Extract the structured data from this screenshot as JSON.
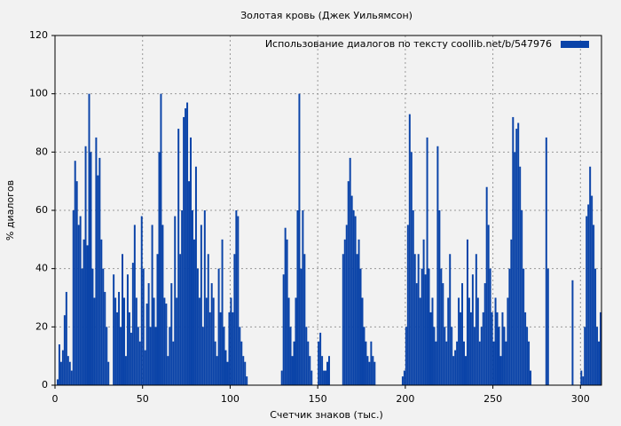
{
  "chart_data": {
    "type": "histogram",
    "title": "Золотая кровь (Джек Уильямсон)",
    "xlabel": "Счетчик знаков (тыс.)",
    "ylabel": "% диалогов",
    "series": [
      {
        "name": "Использование диалогов по тексту  coollib.net/b/547976",
        "color": "#0a43a8",
        "values": [
          0,
          2,
          14,
          8,
          12,
          24,
          32,
          10,
          8,
          5,
          60,
          77,
          70,
          55,
          58,
          40,
          50,
          82,
          48,
          100,
          80,
          40,
          30,
          85,
          72,
          78,
          50,
          40,
          32,
          20,
          8,
          0,
          0,
          38,
          30,
          25,
          32,
          20,
          45,
          30,
          10,
          38,
          25,
          18,
          42,
          55,
          30,
          20,
          15,
          58,
          40,
          12,
          28,
          35,
          20,
          55,
          30,
          20,
          45,
          80,
          100,
          55,
          30,
          28,
          10,
          20,
          35,
          15,
          58,
          30,
          88,
          45,
          60,
          92,
          95,
          97,
          70,
          85,
          60,
          50,
          75,
          40,
          30,
          55,
          20,
          60,
          30,
          45,
          25,
          35,
          30,
          15,
          10,
          40,
          25,
          50,
          20,
          12,
          8,
          25,
          30,
          25,
          45,
          60,
          58,
          20,
          15,
          10,
          8,
          3,
          0,
          0,
          0,
          0,
          0,
          0,
          0,
          0,
          0,
          0,
          0,
          0,
          0,
          0,
          0,
          0,
          0,
          0,
          0,
          5,
          38,
          54,
          50,
          30,
          20,
          10,
          15,
          30,
          60,
          100,
          40,
          60,
          45,
          20,
          15,
          10,
          5,
          0,
          0,
          0,
          15,
          18,
          10,
          5,
          5,
          8,
          10,
          0,
          0,
          0,
          0,
          0,
          0,
          0,
          45,
          50,
          55,
          70,
          78,
          65,
          60,
          58,
          45,
          50,
          40,
          30,
          20,
          15,
          10,
          8,
          15,
          10,
          8,
          0,
          0,
          0,
          0,
          0,
          0,
          0,
          0,
          0,
          0,
          0,
          0,
          0,
          0,
          0,
          3,
          5,
          20,
          55,
          93,
          80,
          60,
          45,
          35,
          45,
          30,
          40,
          50,
          38,
          85,
          40,
          25,
          30,
          20,
          15,
          82,
          60,
          40,
          35,
          20,
          15,
          30,
          45,
          20,
          10,
          12,
          15,
          30,
          25,
          35,
          15,
          10,
          50,
          30,
          25,
          38,
          20,
          45,
          30,
          15,
          20,
          25,
          35,
          68,
          55,
          40,
          25,
          15,
          30,
          25,
          20,
          10,
          25,
          20,
          15,
          30,
          40,
          50,
          92,
          80,
          88,
          90,
          75,
          60,
          40,
          25,
          20,
          15,
          5,
          0,
          0,
          0,
          0,
          0,
          0,
          0,
          0,
          85,
          40,
          0,
          0,
          0,
          0,
          0,
          0,
          0,
          0,
          0,
          0,
          0,
          0,
          0,
          36,
          0,
          0,
          0,
          0,
          5,
          3,
          20,
          58,
          62,
          75,
          65,
          55,
          40,
          20,
          15,
          25
        ]
      }
    ],
    "bins": [
      0,
      1,
      2,
      3,
      4,
      5,
      6,
      7,
      8,
      9,
      10,
      11,
      12,
      13,
      14,
      15,
      16,
      17,
      18,
      19,
      20,
      21,
      22,
      23,
      24,
      25,
      26,
      27,
      28,
      29,
      30,
      31,
      32,
      33,
      34,
      35,
      36,
      37,
      38,
      39,
      40,
      41,
      42,
      43,
      44,
      45,
      46,
      47,
      48,
      49,
      50,
      51,
      52,
      53,
      54,
      55,
      56,
      57,
      58,
      59,
      60,
      61,
      62,
      63,
      64,
      65,
      66,
      67,
      68,
      69,
      70,
      71,
      72,
      73,
      74,
      75,
      76,
      77,
      78,
      79,
      80,
      81,
      82,
      83,
      84,
      85,
      86,
      87,
      88,
      89,
      90,
      91,
      92,
      93,
      94,
      95,
      96,
      97,
      98,
      99,
      100,
      101,
      102,
      103,
      104,
      105,
      106,
      107,
      108,
      109,
      110,
      111,
      112,
      113,
      114,
      115,
      116,
      117,
      118,
      119,
      120,
      121,
      122,
      123,
      124,
      125,
      126,
      127,
      128,
      129,
      130,
      131,
      132,
      133,
      134,
      135,
      136,
      137,
      138,
      139,
      140,
      141,
      142,
      143,
      144,
      145,
      146,
      147,
      148,
      149,
      150,
      151,
      152,
      153,
      154,
      155,
      156,
      157,
      158,
      159,
      160,
      161,
      162,
      163,
      164,
      165,
      166,
      167,
      168,
      169,
      170,
      171,
      172,
      173,
      174,
      175,
      176,
      177,
      178,
      179,
      180,
      181,
      182,
      183,
      184,
      185,
      186,
      187,
      188,
      189,
      190,
      191,
      192,
      193,
      194,
      195,
      196,
      197,
      198,
      199,
      200,
      201,
      202,
      203,
      204,
      205,
      206,
      207,
      208,
      209,
      210,
      211,
      212,
      213,
      214,
      215,
      216,
      217,
      218,
      219,
      220,
      221,
      222,
      223,
      224,
      225,
      226,
      227,
      228,
      229,
      230,
      231,
      232,
      233,
      234,
      235,
      236,
      237,
      238,
      239,
      240,
      241,
      242,
      243,
      244,
      245,
      246,
      247,
      248,
      249,
      250,
      251,
      252,
      253,
      254,
      255,
      256,
      257,
      258,
      259,
      260,
      261,
      262,
      263,
      264,
      265,
      266,
      267,
      268,
      269,
      270,
      271,
      272,
      273,
      274,
      275,
      276,
      277,
      278,
      279,
      280,
      281,
      282,
      283,
      284,
      285,
      286,
      287,
      288,
      289,
      290,
      291,
      292,
      293,
      294,
      295,
      296,
      297,
      298,
      299,
      300,
      301,
      302,
      303,
      304,
      305,
      306,
      307,
      308,
      309,
      310,
      311,
      312
    ],
    "xlim": [
      0,
      312
    ],
    "ylim": [
      0,
      120
    ],
    "xticks": [
      0,
      50,
      100,
      150,
      200,
      250,
      300
    ],
    "yticks": [
      0,
      20,
      40,
      60,
      80,
      100,
      120
    ],
    "grid": true,
    "legend": "upper right"
  }
}
